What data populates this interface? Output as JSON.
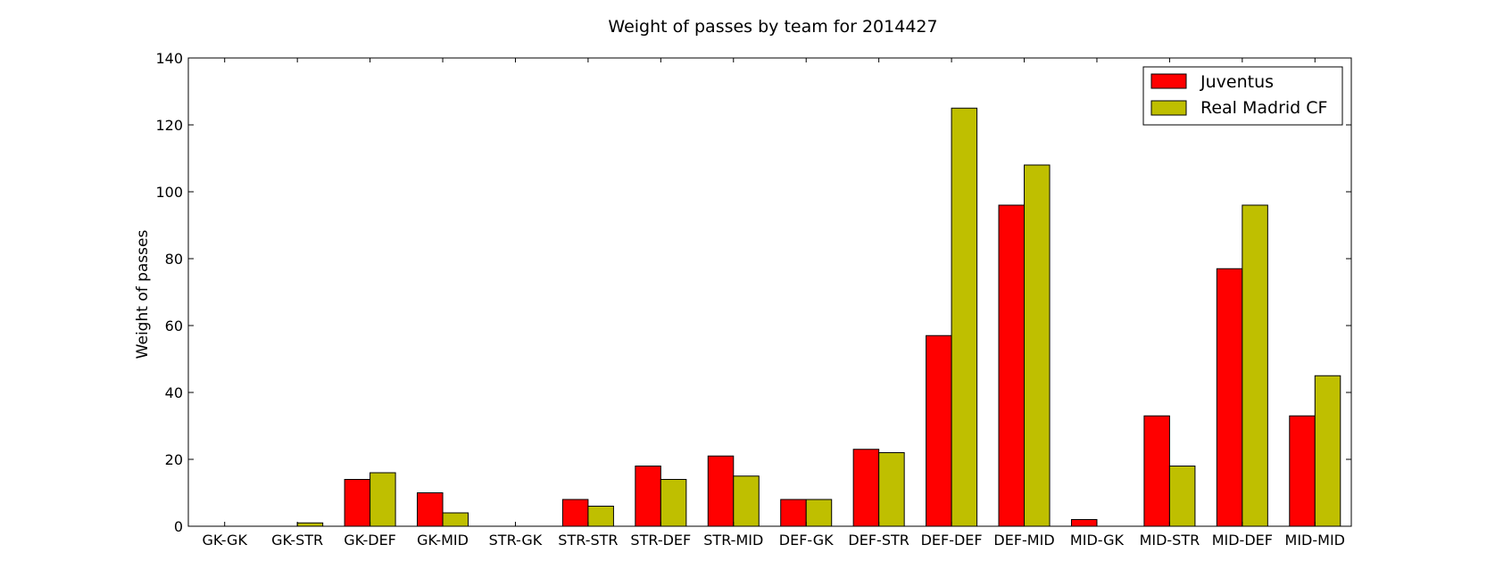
{
  "chart_data": {
    "type": "bar",
    "title": "Weight of passes by team for 2014427",
    "xlabel": "",
    "ylabel": "Weight of passes",
    "ylim": [
      0,
      140
    ],
    "yticks": [
      "0",
      "20",
      "40",
      "60",
      "80",
      "100",
      "120",
      "140"
    ],
    "grid": false,
    "legend_position": "top-right",
    "categories": [
      "GK-GK",
      "GK-STR",
      "GK-DEF",
      "GK-MID",
      "STR-GK",
      "STR-STR",
      "STR-DEF",
      "STR-MID",
      "DEF-GK",
      "DEF-STR",
      "DEF-DEF",
      "DEF-MID",
      "MID-GK",
      "MID-STR",
      "MID-DEF",
      "MID-MID"
    ],
    "series": [
      {
        "name": "Juventus",
        "color": "#ff0000",
        "values": [
          0,
          0,
          14,
          10,
          0,
          8,
          18,
          21,
          8,
          23,
          57,
          96,
          2,
          33,
          77,
          33
        ]
      },
      {
        "name": "Real Madrid CF",
        "color": "#bfbf00",
        "values": [
          0,
          1,
          16,
          4,
          0,
          6,
          14,
          15,
          8,
          22,
          125,
          108,
          0,
          18,
          96,
          45
        ]
      }
    ]
  }
}
